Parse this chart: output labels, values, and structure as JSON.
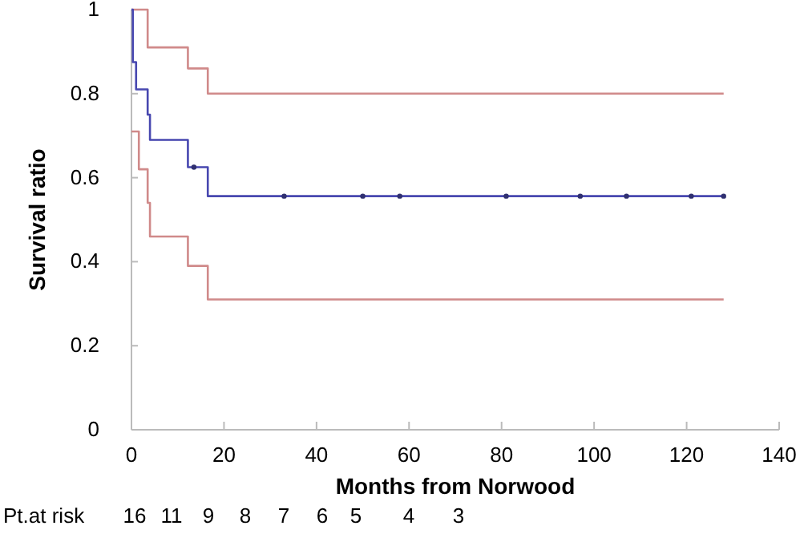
{
  "chart_data": {
    "type": "step",
    "xlabel": "Months from Norwood",
    "ylabel": "Survival ratio",
    "xlim": [
      0,
      140
    ],
    "xticks": [
      0,
      20,
      40,
      60,
      80,
      100,
      120,
      140
    ],
    "ylim": [
      0,
      1
    ],
    "yticks": [
      0,
      0.2,
      0.4,
      0.6,
      0.8,
      1
    ],
    "grid": false,
    "line_style": "solid",
    "series": [
      {
        "color": "#d08a8a",
        "x": [
          0,
          3.5,
          12.2,
          16.5,
          128
        ],
        "values": [
          1,
          0.91,
          0.86,
          0.8,
          0.8
        ]
      },
      {
        "color": "#d08a8a",
        "x": [
          0,
          1.6,
          3.5,
          4,
          12.2,
          16.5,
          128
        ],
        "values": [
          0.71,
          0.62,
          0.54,
          0.46,
          0.39,
          0.31,
          0.31
        ]
      },
      {
        "color": "#4848b0",
        "x": [
          0,
          0.3,
          1,
          3.5,
          4,
          12.2,
          16.5,
          128
        ],
        "values": [
          1,
          0.875,
          0.81,
          0.75,
          0.69,
          0.625,
          0.556,
          0.556
        ]
      },
      {
        "type": "scatter",
        "marker": "circle",
        "color": "#303070",
        "x": [
          13.5,
          33,
          50,
          58,
          81,
          97,
          107,
          121,
          128
        ],
        "values": [
          0.625,
          0.556,
          0.556,
          0.556,
          0.556,
          0.556,
          0.556,
          0.556,
          0.556
        ]
      }
    ],
    "annotations": [
      "Pt.at risk",
      "16",
      "11",
      "9",
      "8",
      "7",
      "6",
      "5",
      "4",
      "3"
    ]
  }
}
